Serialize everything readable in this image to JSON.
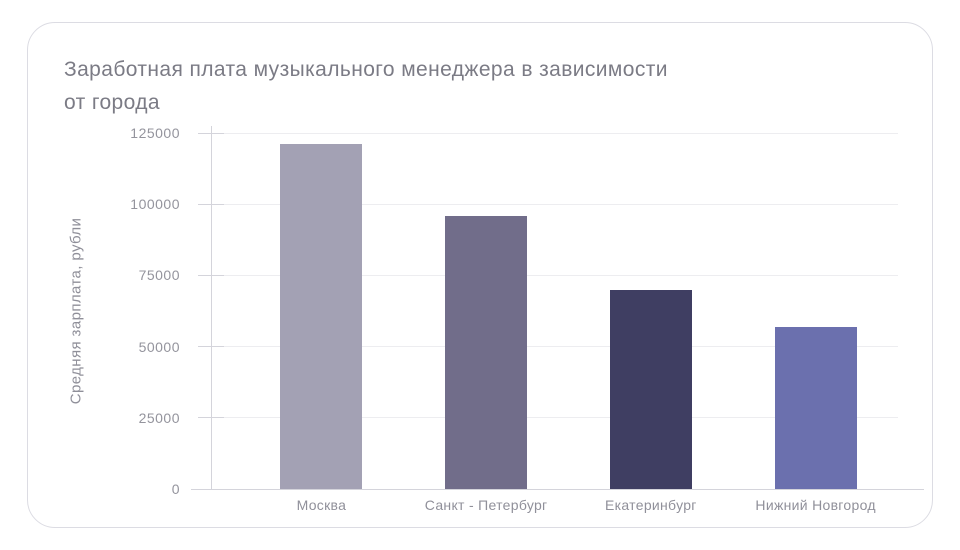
{
  "title_lines": [
    "Заработная плата музыкального менеджера в зависимости",
    "от города"
  ],
  "chart_data": {
    "type": "bar",
    "title": "Заработная плата музыкального менеджера в зависимости от города",
    "ylabel": "Средняя зарплата, рубли",
    "xlabel": "",
    "categories": [
      "Москва",
      "Санкт - Петербург",
      "Екатеринбург",
      "Нижний Новгород"
    ],
    "values": [
      121000,
      96000,
      70000,
      57000
    ],
    "bar_colors": [
      "#a3a1b4",
      "#716d8a",
      "#3f3e62",
      "#6b70ae"
    ],
    "yticks": [
      0,
      25000,
      50000,
      75000,
      100000,
      125000
    ],
    "ytick_labels": [
      "0",
      "25000",
      "50000",
      "75000",
      "100000",
      "125000"
    ],
    "ylim": [
      0,
      125000
    ],
    "grid": true,
    "legend": false
  },
  "colors": {
    "card_background": "#ffffff",
    "card_border": "#dcdce3",
    "title_text": "#7b7b85",
    "tick_text": "#94949d",
    "axis_line": "#d4d4db",
    "grid_line": "#ededf0"
  }
}
